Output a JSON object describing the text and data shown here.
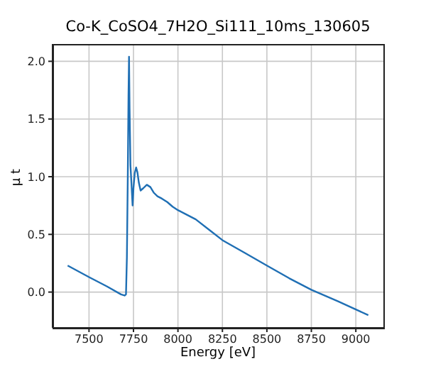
{
  "chart_data": {
    "type": "line",
    "title": "Co-K_CoSO4_7H2O_Si111_10ms_130605",
    "xlabel": "Energy [eV]",
    "ylabel": "μ t",
    "x": [
      7380,
      7500,
      7600,
      7680,
      7700,
      7708,
      7713,
      7718,
      7722,
      7725,
      7728,
      7733,
      7740,
      7745,
      7750,
      7757,
      7765,
      7772,
      7780,
      7790,
      7805,
      7825,
      7845,
      7865,
      7885,
      7910,
      7940,
      7970,
      8000,
      8050,
      8100,
      8175,
      8250,
      8375,
      8500,
      8625,
      8750,
      8900,
      9070
    ],
    "series": [
      {
        "color": "#1f6fb4",
        "values": [
          0.23,
          0.13,
          0.05,
          -0.02,
          -0.03,
          -0.02,
          0.3,
          1.0,
          1.7,
          2.04,
          1.6,
          1.1,
          0.9,
          0.75,
          0.9,
          1.03,
          1.08,
          1.04,
          0.95,
          0.88,
          0.9,
          0.93,
          0.91,
          0.86,
          0.83,
          0.81,
          0.78,
          0.74,
          0.71,
          0.67,
          0.63,
          0.54,
          0.45,
          0.34,
          0.23,
          0.12,
          0.02,
          -0.08,
          -0.2
        ]
      }
    ],
    "xlim": [
      7295,
      9155
    ],
    "xticks": [
      7500,
      7750,
      8000,
      8250,
      8500,
      8750,
      9000
    ],
    "ylim": [
      -0.31,
      2.15
    ],
    "yticks": [
      {
        "value": 0,
        "label": "0.0"
      },
      {
        "value": 0.5,
        "label": "0.5"
      },
      {
        "value": 1,
        "label": "1.0"
      },
      {
        "value": 1.5,
        "label": "1.5"
      },
      {
        "value": 2,
        "label": "2.0"
      }
    ],
    "grid": true,
    "marker": "none",
    "line_style": "solid"
  }
}
